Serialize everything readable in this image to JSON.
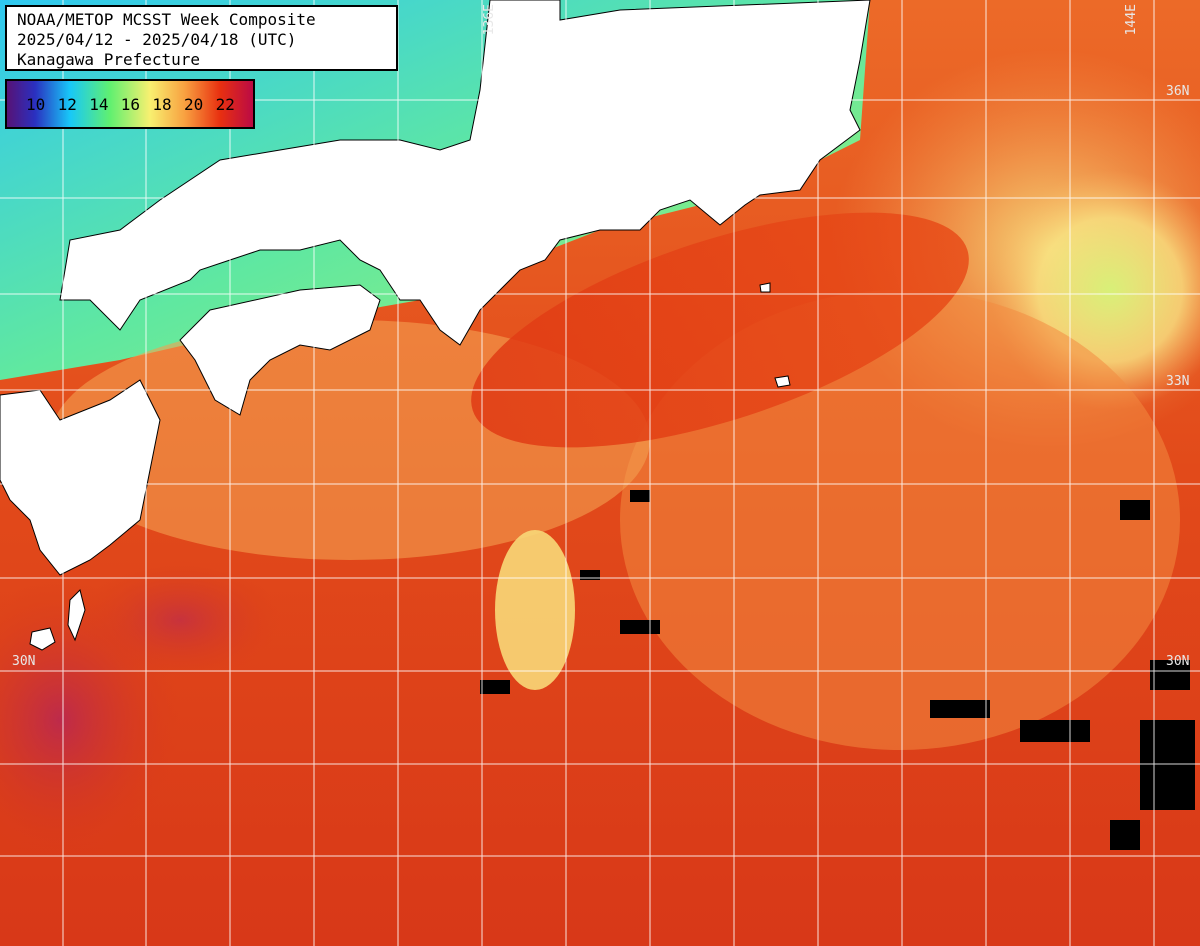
{
  "title": {
    "line1": "NOAA/METOP MCSST Week Composite",
    "line2": "2025/04/12 - 2025/04/18 (UTC)",
    "line3": "Kanagawa Prefecture"
  },
  "legend": {
    "ticks": [
      "10",
      "12",
      "14",
      "16",
      "18",
      "20",
      "22"
    ],
    "colors": [
      "#5a1070",
      "#1a3cc8",
      "#18d8f8",
      "#6af070",
      "#f8f070",
      "#f8a040",
      "#e83010",
      "#b80848"
    ]
  },
  "grid_labels": {
    "lon_136": "136E",
    "lon_144": "144E",
    "lat_36": "36N",
    "lat_33": "33N",
    "lat_30_left": "30N",
    "lat_30_right": "30N"
  },
  "colors": {
    "land": "#ffffff",
    "grid": "#ffffff",
    "ocean_warm": "#e04818",
    "ocean_mid": "#f8a050",
    "coastal_cool": "#38d8f0"
  }
}
